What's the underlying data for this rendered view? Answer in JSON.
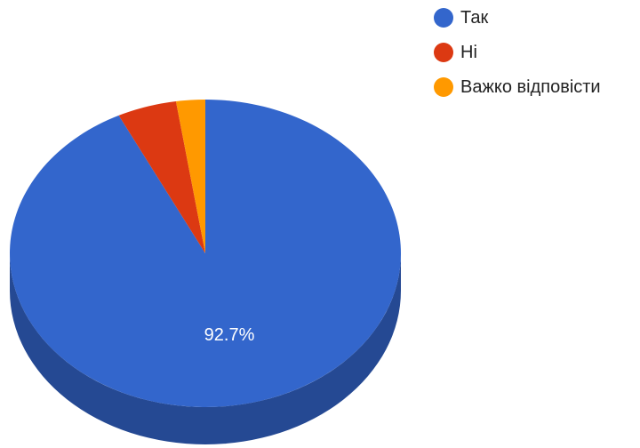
{
  "chart_data": {
    "type": "pie",
    "style": "3d",
    "categories": [
      "Так",
      "Ні",
      "Важко відповісти"
    ],
    "values": [
      92.7,
      4.9,
      2.4
    ],
    "unit": "%",
    "colors": [
      "#3366cc",
      "#dc3912",
      "#ff9900"
    ],
    "data_labels": [
      "92.7%",
      "",
      ""
    ],
    "legend_position": "top-right",
    "start_angle": "12 o'clock",
    "direction": "clockwise"
  }
}
